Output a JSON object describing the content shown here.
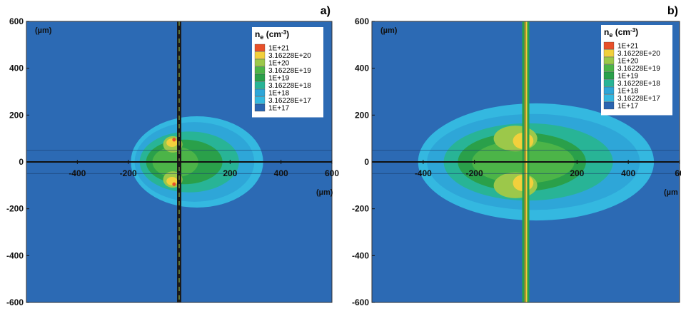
{
  "chart_data": [
    {
      "type": "heatmap",
      "panel_label": "a)",
      "title": "",
      "legend_title": "ne (cm-3)",
      "legend_title_main": "n",
      "legend_title_sub": "e",
      "legend_title_unit": " (cm",
      "legend_title_exp": "-3",
      "legend_title_close": ")",
      "legend_placement": "top-right",
      "x_unit_label": "(µm)",
      "y_unit_label": "(µm)",
      "xlim": [
        -600,
        600
      ],
      "ylim": [
        -600,
        600
      ],
      "x_ticks": [
        "-400",
        "-200",
        "0",
        "200",
        "400",
        "600"
      ],
      "y_ticks": [
        "600",
        "400",
        "200",
        "0",
        "-200",
        "-400",
        "-600"
      ],
      "levels": [
        "1E+21",
        "3.16228E+20",
        "1E+20",
        "3.16228E+19",
        "1E+19",
        "3.16228E+18",
        "1E+18",
        "3.16228E+17",
        "1E+17"
      ],
      "colors": [
        "#e8502a",
        "#f2d03c",
        "#9cc84a",
        "#4cb448",
        "#2aa04a",
        "#28b496",
        "#2ea6d8",
        "#34b8e0",
        "#2a64b0"
      ],
      "background_color": "#2c6ab4"
    },
    {
      "type": "heatmap",
      "panel_label": "b)",
      "title": "",
      "legend_title": "ne (cm-3)",
      "legend_title_main": "n",
      "legend_title_sub": "e",
      "legend_title_unit": " (cm",
      "legend_title_exp": "-3",
      "legend_title_close": ")",
      "legend_placement": "top-right",
      "x_unit_label": "(µm",
      "y_unit_label": "(µm)",
      "xlim": [
        -600,
        600
      ],
      "ylim": [
        -600,
        600
      ],
      "x_ticks": [
        "-400",
        "-200",
        "0",
        "200",
        "400",
        "60"
      ],
      "y_ticks": [
        "600",
        "400",
        "200",
        "0",
        "-200",
        "-400",
        "-600"
      ],
      "levels": [
        "1E+21",
        "3.16228E+20",
        "1E+20",
        "3.16228E+19",
        "1E+19",
        "3.16228E+18",
        "1E+18",
        "3.16228E+17",
        "1E+17"
      ],
      "colors": [
        "#e8502a",
        "#f2d03c",
        "#9cc84a",
        "#4cb448",
        "#2aa04a",
        "#28b496",
        "#2ea6d8",
        "#34b8e0",
        "#2a64b0"
      ],
      "background_color": "#2c6ab4"
    }
  ]
}
